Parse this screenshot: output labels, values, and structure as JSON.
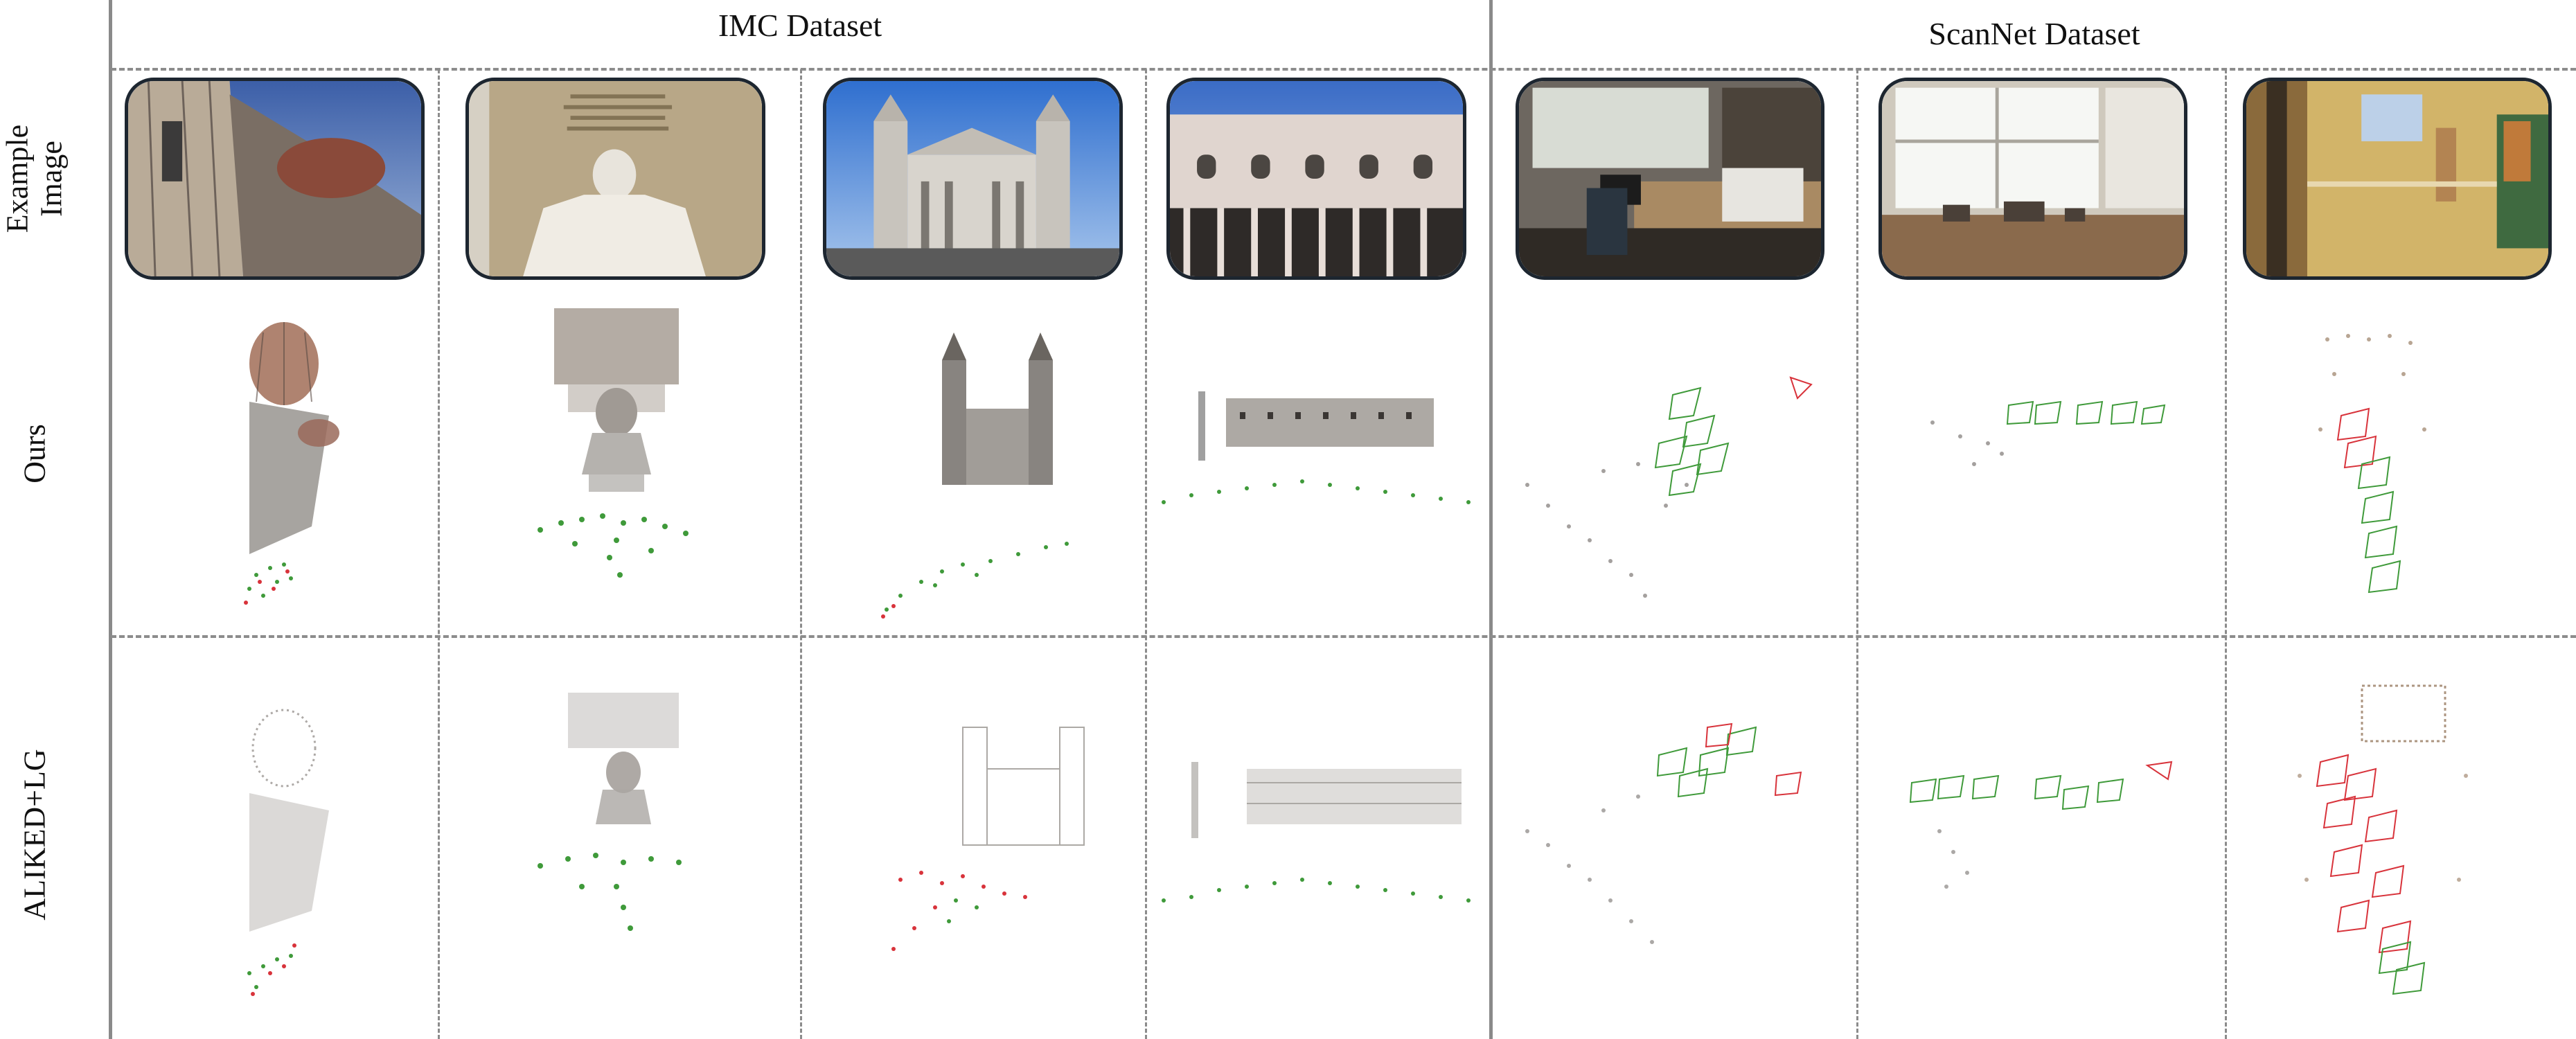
{
  "group_titles": {
    "imc": "IMC Dataset",
    "scannet": "ScanNet Dataset"
  },
  "row_labels": {
    "example": "Example Image",
    "ours": "Ours",
    "baseline": "ALIKED+LG"
  },
  "colors": {
    "correct_camera": "#3f9a3a",
    "incorrect_camera": "#d8333b",
    "point_cloud": "#5a5450",
    "divider": "#8c8c8c"
  },
  "columns": [
    {
      "dataset": "IMC Dataset",
      "subject": "cathedral-dome"
    },
    {
      "dataset": "IMC Dataset",
      "subject": "seated-statue"
    },
    {
      "dataset": "IMC Dataset",
      "subject": "cathedral-facade"
    },
    {
      "dataset": "IMC Dataset",
      "subject": "palace-facade"
    },
    {
      "dataset": "ScanNet Dataset",
      "subject": "office-room"
    },
    {
      "dataset": "ScanNet Dataset",
      "subject": "desk-window"
    },
    {
      "dataset": "ScanNet Dataset",
      "subject": "hallway-door"
    }
  ]
}
